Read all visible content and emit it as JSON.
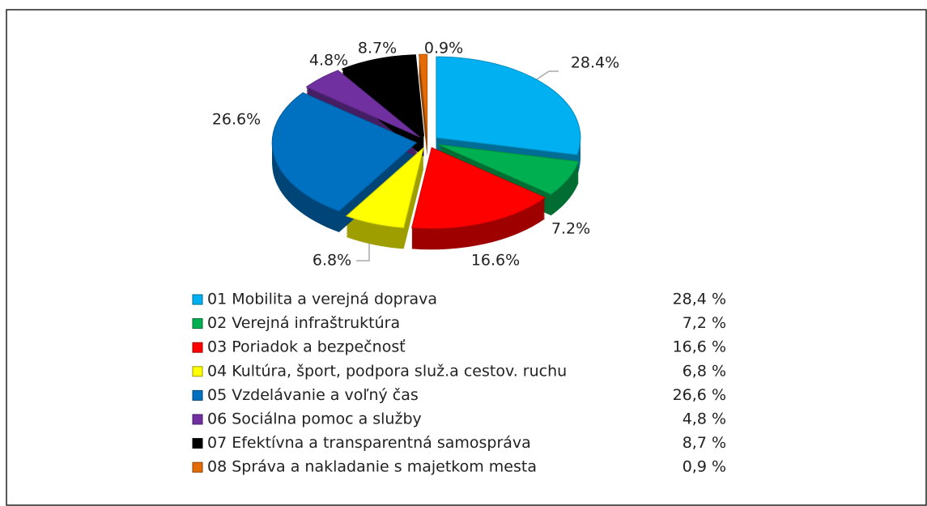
{
  "chart_data": {
    "type": "pie",
    "categories": [
      "01 Mobilita a  verejná doprava",
      "02 Verejná infraštruktúra",
      "03 Poriadok a bezpečnosť",
      "04 Kultúra, šport, podpora služ.a cestov. ruchu",
      "05 Vzdelávanie a voľný čas",
      "06 Sociálna pomoc a služby",
      "07 Efektívna a transparentná samospráva",
      "08 Správa a nakladanie s majetkom mesta"
    ],
    "values": [
      28.4,
      7.2,
      16.6,
      6.8,
      26.6,
      4.8,
      8.7,
      0.9
    ],
    "value_labels": [
      "28.4%",
      "7.2%",
      "16.6%",
      "6.8%",
      "26.6%",
      "4.8%",
      "8.7%",
      "0.9%"
    ],
    "legend_value_labels": [
      "28,4 %",
      "7,2 %",
      "16,6 %",
      "6,8 %",
      "26,6 %",
      "4,8 %",
      "8,7 %",
      "0,9 %"
    ],
    "colors": [
      "#00b0f0",
      "#00b050",
      "#ff0000",
      "#ffff00",
      "#0070c0",
      "#7030a0",
      "#000000",
      "#e36c09"
    ]
  }
}
